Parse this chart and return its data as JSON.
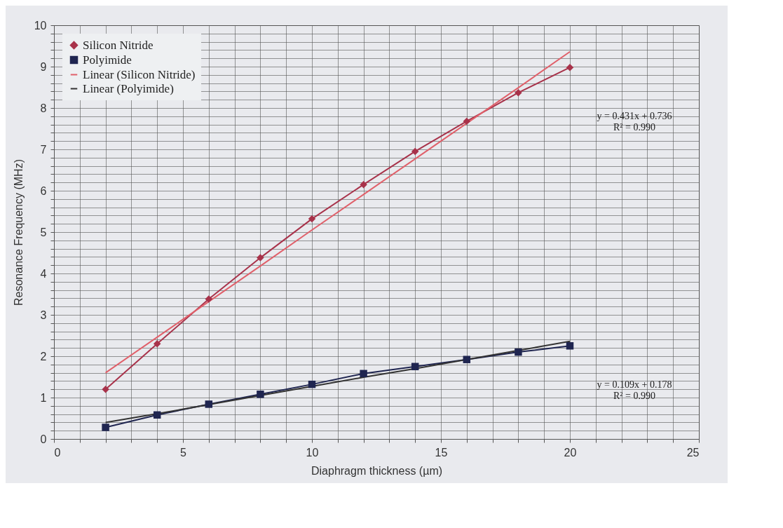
{
  "chart_data": {
    "type": "line",
    "xlabel": "Diaphragm thickness (µm)",
    "ylabel": "Resonance Frequency (MHz)",
    "xlim": [
      0,
      25
    ],
    "ylim": [
      0,
      10
    ],
    "xticks": [
      0,
      {
        "value": 1,
        "label": null
      },
      {
        "value": 2,
        "label": null
      },
      {
        "value": 3,
        "label": null
      },
      {
        "value": 4,
        "label": null
      },
      5,
      {
        "value": 6,
        "label": null
      },
      {
        "value": 7,
        "label": null
      },
      {
        "value": 8,
        "label": null
      },
      {
        "value": 9,
        "label": null
      },
      10,
      {
        "value": 11,
        "label": null
      },
      {
        "value": 12,
        "label": null
      },
      {
        "value": 13,
        "label": null
      },
      {
        "value": 14,
        "label": null
      },
      15,
      {
        "value": 16,
        "label": null
      },
      {
        "value": 17,
        "label": null
      },
      {
        "value": 18,
        "label": null
      },
      {
        "value": 19,
        "label": null
      },
      20,
      {
        "value": 21,
        "label": null
      },
      {
        "value": 22,
        "label": null
      },
      {
        "value": 23,
        "label": null
      },
      {
        "value": 24,
        "label": null
      },
      25
    ],
    "yticks": [
      0,
      {
        "value": 0.2,
        "label": null
      },
      {
        "value": 0.4,
        "label": null
      },
      {
        "value": 0.6,
        "label": null
      },
      {
        "value": 0.8,
        "label": null
      },
      1,
      {
        "value": 1.2,
        "label": null
      },
      {
        "value": 1.4,
        "label": null
      },
      {
        "value": 1.6,
        "label": null
      },
      {
        "value": 1.8,
        "label": null
      },
      2,
      {
        "value": 2.2,
        "label": null
      },
      {
        "value": 2.4,
        "label": null
      },
      {
        "value": 2.6,
        "label": null
      },
      {
        "value": 2.8,
        "label": null
      },
      3,
      {
        "value": 3.2,
        "label": null
      },
      {
        "value": 3.4,
        "label": null
      },
      {
        "value": 3.6,
        "label": null
      },
      {
        "value": 3.8,
        "label": null
      },
      4,
      {
        "value": 4.2,
        "label": null
      },
      {
        "value": 4.4,
        "label": null
      },
      {
        "value": 4.6,
        "label": null
      },
      {
        "value": 4.8,
        "label": null
      },
      5,
      {
        "value": 5.2,
        "label": null
      },
      {
        "value": 5.4,
        "label": null
      },
      {
        "value": 5.6,
        "label": null
      },
      {
        "value": 5.8,
        "label": null
      },
      6,
      {
        "value": 6.2,
        "label": null
      },
      {
        "value": 6.4,
        "label": null
      },
      {
        "value": 6.6,
        "label": null
      },
      {
        "value": 6.8,
        "label": null
      },
      7,
      {
        "value": 7.2,
        "label": null
      },
      {
        "value": 7.4,
        "label": null
      },
      {
        "value": 7.6,
        "label": null
      },
      {
        "value": 7.8,
        "label": null
      },
      8,
      {
        "value": 8.2,
        "label": null
      },
      {
        "value": 8.4,
        "label": null
      },
      {
        "value": 8.6,
        "label": null
      },
      {
        "value": 8.8,
        "label": null
      },
      9,
      {
        "value": 9.2,
        "label": null
      },
      {
        "value": 9.4,
        "label": null
      },
      {
        "value": 9.6,
        "label": null
      },
      {
        "value": 9.8,
        "label": null
      },
      10
    ],
    "grid": true,
    "legend": "top left",
    "line_style": "solid",
    "x": [
      2,
      4,
      6,
      8,
      10,
      12,
      14,
      16,
      18,
      20
    ],
    "series": [
      {
        "name": "Silicon Nitride",
        "color": "#a8324a",
        "marker": "diamond",
        "values": [
          1.2,
          2.3,
          3.38,
          4.38,
          5.32,
          6.15,
          6.95,
          7.68,
          8.37,
          8.98
        ]
      },
      {
        "name": "Polyimide",
        "color": "#1f2550",
        "marker": "square",
        "values": [
          0.28,
          0.58,
          0.84,
          1.08,
          1.32,
          1.58,
          1.75,
          1.92,
          2.1,
          2.25
        ]
      },
      {
        "name": "Linear (Silicon Nitride)",
        "color": "#e0606a",
        "type": "line",
        "values": [
          1.6,
          2.46,
          3.32,
          4.18,
          5.05,
          5.91,
          6.77,
          7.63,
          8.49,
          9.36
        ]
      },
      {
        "name": "Linear (Polyimide)",
        "color": "#333333",
        "type": "line",
        "values": [
          0.4,
          0.61,
          0.83,
          1.05,
          1.27,
          1.49,
          1.7,
          1.92,
          2.14,
          2.36
        ]
      }
    ],
    "annotations": [
      "y = 0.431x + 0.736\nR² = 0.990",
      "y = 0.109x + 0.178\nR² = 0.990"
    ]
  }
}
